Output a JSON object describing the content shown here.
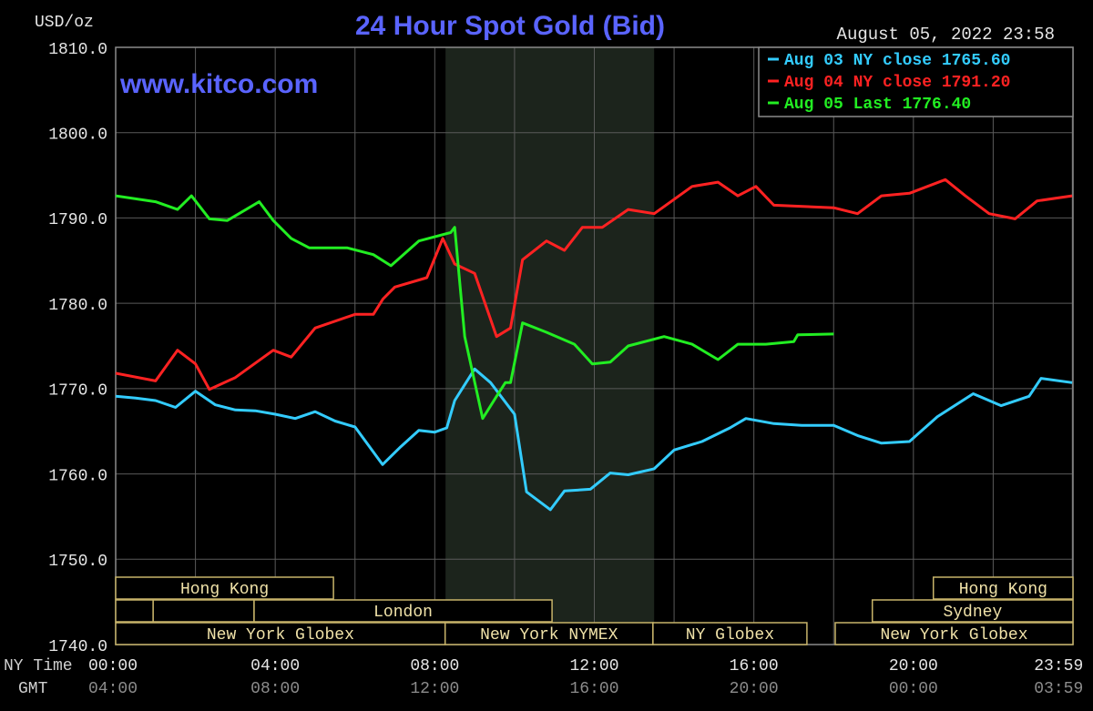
{
  "chart_data": {
    "type": "line",
    "title": "24 Hour Spot Gold (Bid)",
    "date": "August 05, 2022 23:58",
    "y_unit": "USD/oz",
    "watermark": "www.kitco.com",
    "x_row_labels": [
      "NY Time",
      "GMT"
    ],
    "xlim": [
      0,
      24
    ],
    "ylim": [
      1740,
      1810
    ],
    "xticks": [
      {
        "value": 0,
        "label": "00:00"
      },
      {
        "value": 4,
        "label": "04:00"
      },
      {
        "value": 8,
        "label": "08:00"
      },
      {
        "value": 12,
        "label": "12:00"
      },
      {
        "value": 16,
        "label": "16:00"
      },
      {
        "value": 20,
        "label": "20:00"
      },
      {
        "value": 23.983,
        "label": "23:59"
      }
    ],
    "gmt_labels": [
      "04:00",
      "08:00",
      "12:00",
      "16:00",
      "20:00",
      "00:00",
      "03:59"
    ],
    "xminor": [
      2,
      6,
      10,
      14,
      18,
      22
    ],
    "yticks": [
      {
        "value": 1740,
        "label": "1740.0"
      },
      {
        "value": 1750,
        "label": "1750.0"
      },
      {
        "value": 1760,
        "label": "1760.0"
      },
      {
        "value": 1770,
        "label": "1770.0"
      },
      {
        "value": 1780,
        "label": "1780.0"
      },
      {
        "value": 1790,
        "label": "1790.0"
      },
      {
        "value": 1800,
        "label": "1800.0"
      },
      {
        "value": 1810,
        "label": "1810.0"
      }
    ],
    "grid": true,
    "legend": "top-right",
    "shaded_range": [
      8.27,
      13.5
    ],
    "session_rows": [
      [
        {
          "label": "Hong Kong",
          "start": 0,
          "end": 5.46
        },
        {
          "label": "Hong Kong",
          "start": 20.5,
          "end": 24
        }
      ],
      [
        {
          "label": null,
          "start": 0,
          "end": 0.94
        },
        {
          "label": null,
          "start": 0.94,
          "end": 3.47
        },
        {
          "label": "London",
          "start": 3.47,
          "end": 10.94
        },
        {
          "label": "Sydney",
          "start": 18.97,
          "end": 24
        }
      ],
      [
        {
          "label": "New York Globex",
          "start": 0,
          "end": 8.26
        },
        {
          "label": "New York NYMEX",
          "start": 8.26,
          "end": 13.47
        },
        {
          "label": "NY Globex",
          "start": 13.47,
          "end": 17.33
        },
        {
          "label": "New York Globex",
          "start": 18.04,
          "end": 24
        }
      ]
    ],
    "series": [
      {
        "name": "Aug 03 NY close 1765.60",
        "color": "#33ccff",
        "x": [
          0,
          0.5,
          1,
          1.5,
          2,
          2.5,
          3,
          3.5,
          4,
          4.5,
          5,
          5.5,
          6,
          6.69,
          7.15,
          7.6,
          8.0,
          8.3,
          8.5,
          9.0,
          9.4,
          10.0,
          10.3,
          10.9,
          11.25,
          11.9,
          12.4,
          12.85,
          13.5,
          14.0,
          14.7,
          15.4,
          15.8,
          16.5,
          17.2,
          18.0,
          18.6,
          19.2,
          19.9,
          20.6,
          21.5,
          22.2,
          22.9,
          23.2,
          23.98
        ],
        "values": [
          1769.1,
          1768.9,
          1768.6,
          1767.8,
          1769.7,
          1768.1,
          1767.5,
          1767.4,
          1767.0,
          1766.5,
          1767.3,
          1766.2,
          1765.5,
          1761.1,
          1763.2,
          1765.1,
          1764.9,
          1765.4,
          1768.6,
          1772.3,
          1770.7,
          1767.0,
          1757.9,
          1755.8,
          1758.0,
          1758.2,
          1760.1,
          1759.9,
          1760.6,
          1762.8,
          1763.8,
          1765.4,
          1766.5,
          1765.9,
          1765.7,
          1765.7,
          1764.5,
          1763.6,
          1763.8,
          1766.7,
          1769.4,
          1768.0,
          1769.1,
          1771.2,
          1770.7
        ]
      },
      {
        "name": "Aug 04 NY close 1791.20",
        "color": "#ff2222",
        "x": [
          0,
          1.0,
          1.55,
          2.0,
          2.35,
          3.0,
          3.95,
          4.4,
          5.0,
          6.0,
          6.46,
          6.7,
          7.0,
          7.8,
          8.2,
          8.5,
          9.0,
          9.55,
          9.9,
          10.2,
          10.8,
          11.25,
          11.7,
          12.2,
          12.85,
          13.5,
          14.45,
          15.1,
          15.6,
          16.05,
          16.5,
          18.0,
          18.6,
          19.2,
          19.9,
          20.8,
          21.3,
          21.9,
          22.55,
          23.1,
          23.98
        ],
        "values": [
          1771.8,
          1770.9,
          1774.5,
          1772.9,
          1769.9,
          1771.3,
          1774.5,
          1773.7,
          1777.1,
          1778.7,
          1778.7,
          1780.5,
          1781.9,
          1783.0,
          1787.6,
          1784.6,
          1783.5,
          1776.1,
          1777.1,
          1785.1,
          1787.3,
          1786.2,
          1788.9,
          1788.9,
          1791.0,
          1790.5,
          1793.7,
          1794.2,
          1792.6,
          1793.7,
          1791.5,
          1791.2,
          1790.5,
          1792.6,
          1792.9,
          1794.5,
          1792.6,
          1790.5,
          1789.9,
          1792.0,
          1792.6
        ]
      },
      {
        "name": "Aug 05 Last 1776.40",
        "color": "#22ee22",
        "x": [
          0,
          1.0,
          1.55,
          1.9,
          2.35,
          2.8,
          3.6,
          3.95,
          4.4,
          4.85,
          5.8,
          6.46,
          6.9,
          7.6,
          8.4,
          8.5,
          8.75,
          9.2,
          9.55,
          9.77,
          9.9,
          10.2,
          10.8,
          11.5,
          11.95,
          12.4,
          12.85,
          13.75,
          14.45,
          15.1,
          15.6,
          16.3,
          17.0,
          17.1,
          18.0
        ],
        "values": [
          1792.6,
          1791.9,
          1791.0,
          1792.6,
          1789.9,
          1789.7,
          1791.9,
          1789.7,
          1787.6,
          1786.5,
          1786.5,
          1785.7,
          1784.4,
          1787.3,
          1788.3,
          1788.9,
          1776.1,
          1766.5,
          1769.1,
          1770.7,
          1770.7,
          1777.7,
          1776.6,
          1775.2,
          1772.9,
          1773.1,
          1775.0,
          1776.1,
          1775.2,
          1773.4,
          1775.2,
          1775.2,
          1775.5,
          1776.3,
          1776.4
        ]
      }
    ]
  }
}
